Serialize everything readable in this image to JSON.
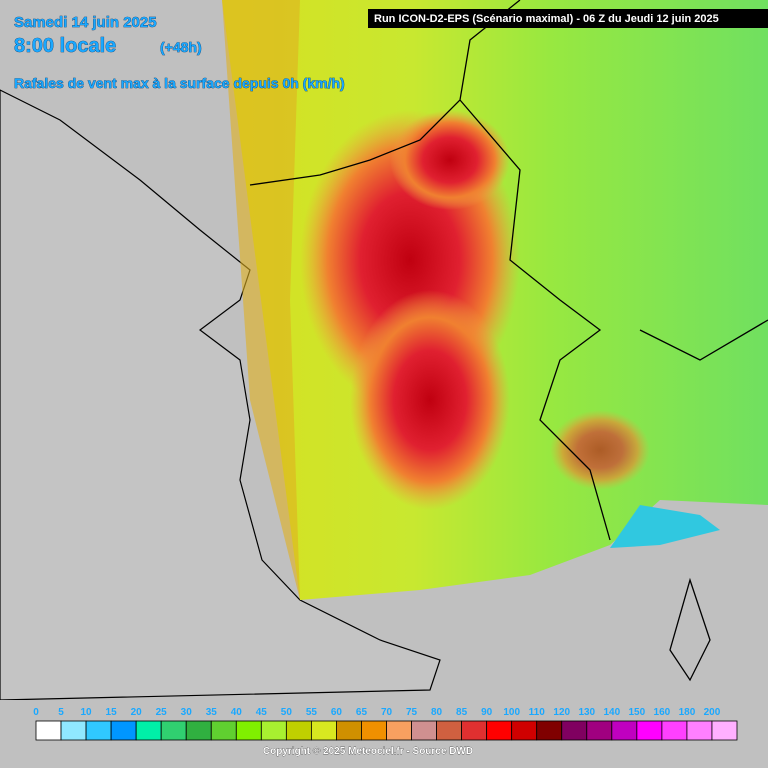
{
  "header": {
    "date": "Samedi 14 juin 2025",
    "time": "8:00 locale",
    "lead": "(+48h)",
    "subtitle": "Rafales de vent max à la surface depuis 0h (km/h)"
  },
  "run_info": "Run ICON-D2-EPS (Scénario maximal) - 06 Z du Jeudi 12 juin 2025",
  "legend": {
    "labels": [
      "0",
      "5",
      "10",
      "15",
      "20",
      "25",
      "30",
      "35",
      "40",
      "45",
      "50",
      "55",
      "60",
      "65",
      "70",
      "75",
      "80",
      "85",
      "90",
      "100",
      "110",
      "120",
      "130",
      "140",
      "150",
      "160",
      "180",
      "200"
    ],
    "colors": [
      "#ffffff",
      "#90e8ff",
      "#30c8ff",
      "#0096ff",
      "#00f0a8",
      "#30d070",
      "#30b040",
      "#60d030",
      "#80f000",
      "#a8f030",
      "#c0d000",
      "#d8e820",
      "#d09000",
      "#f09000",
      "#f8a060",
      "#d09090",
      "#d06040",
      "#e03030",
      "#ff0000",
      "#d00000",
      "#800000",
      "#800060",
      "#a00080",
      "#c000c0",
      "#ff00ff",
      "#ff40ff",
      "#ff80ff",
      "#ffb0ff"
    ]
  },
  "copyright": "Copyright © 2025 Meteociel.fr - Source DWD"
}
